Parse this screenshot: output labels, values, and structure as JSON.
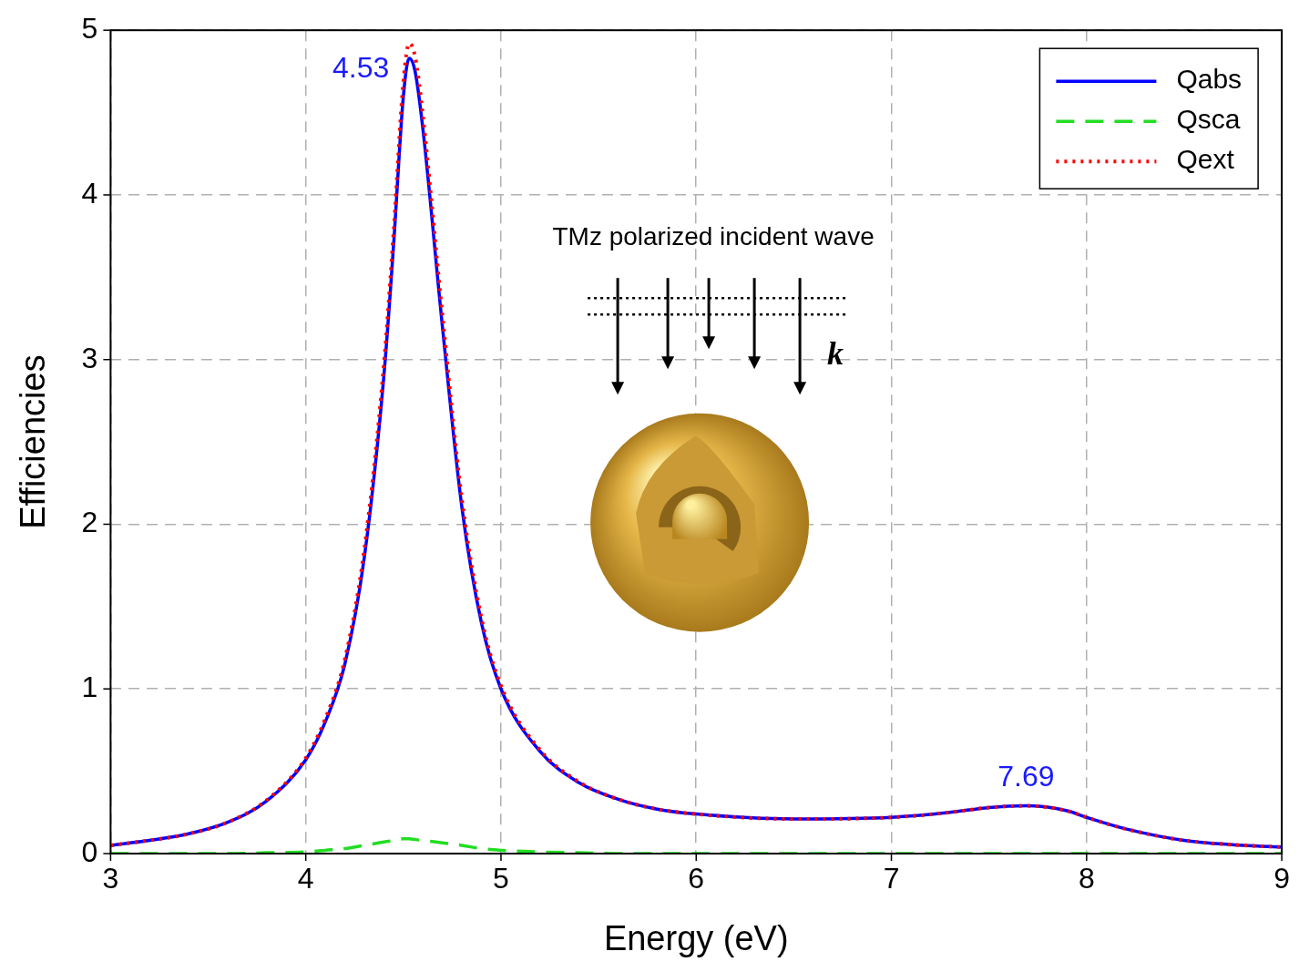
{
  "chart_data": {
    "type": "line",
    "x_label": "Energy (eV)",
    "y_label": "Efficiencies",
    "x": [
      3.0,
      3.2,
      3.4,
      3.6,
      3.8,
      4.0,
      4.1,
      4.2,
      4.3,
      4.4,
      4.45,
      4.5,
      4.53,
      4.56,
      4.6,
      4.7,
      4.8,
      4.9,
      5.0,
      5.2,
      5.4,
      5.6,
      5.8,
      6.0,
      6.5,
      7.0,
      7.3,
      7.5,
      7.69,
      7.9,
      8.0,
      8.2,
      8.5,
      8.8,
      9.0
    ],
    "series": [
      {
        "name": "Qabs",
        "color": "#0000ff",
        "line_style": "solid",
        "values": [
          0.05,
          0.08,
          0.12,
          0.19,
          0.32,
          0.57,
          0.8,
          1.15,
          1.8,
          2.9,
          3.7,
          4.6,
          4.83,
          4.75,
          4.4,
          3.2,
          2.1,
          1.4,
          1.0,
          0.62,
          0.43,
          0.33,
          0.27,
          0.24,
          0.21,
          0.22,
          0.25,
          0.28,
          0.29,
          0.26,
          0.22,
          0.15,
          0.08,
          0.05,
          0.04
        ]
      },
      {
        "name": "Qsca",
        "color": "#22dd22",
        "line_style": "dashed",
        "values": [
          0.0,
          0.0,
          0.0,
          0.0,
          0.005,
          0.01,
          0.02,
          0.03,
          0.05,
          0.07,
          0.08,
          0.09,
          0.09,
          0.085,
          0.08,
          0.065,
          0.05,
          0.03,
          0.02,
          0.01,
          0.005,
          0.0,
          0.0,
          0.0,
          0.0,
          0.0,
          0.0,
          0.0,
          0.0,
          0.0,
          0.0,
          0.0,
          0.0,
          0.0,
          0.0
        ]
      },
      {
        "name": "Qext",
        "color": "#ff0000",
        "line_style": "dotted",
        "values": [
          0.05,
          0.08,
          0.12,
          0.19,
          0.325,
          0.58,
          0.82,
          1.18,
          1.85,
          2.97,
          3.78,
          4.69,
          4.92,
          4.84,
          4.48,
          3.27,
          2.15,
          1.43,
          1.02,
          0.63,
          0.435,
          0.33,
          0.27,
          0.24,
          0.21,
          0.22,
          0.25,
          0.28,
          0.29,
          0.26,
          0.22,
          0.15,
          0.08,
          0.05,
          0.04
        ]
      }
    ],
    "xlim": [
      3,
      9
    ],
    "xticks": [
      3,
      4,
      5,
      6,
      7,
      8,
      9
    ],
    "ylim": [
      0,
      5
    ],
    "yticks": [
      0,
      1,
      2,
      3,
      4,
      5
    ],
    "grid": true,
    "legend": "upper right",
    "annotations": [
      {
        "text": "4.53",
        "x": 4.53,
        "y": 4.83,
        "color": "#1a1aff"
      },
      {
        "text": "7.69",
        "x": 7.69,
        "y": 0.29,
        "color": "#1a1aff"
      }
    ],
    "inset": {
      "label": "TMz polarized incident wave",
      "vector": "k"
    }
  }
}
